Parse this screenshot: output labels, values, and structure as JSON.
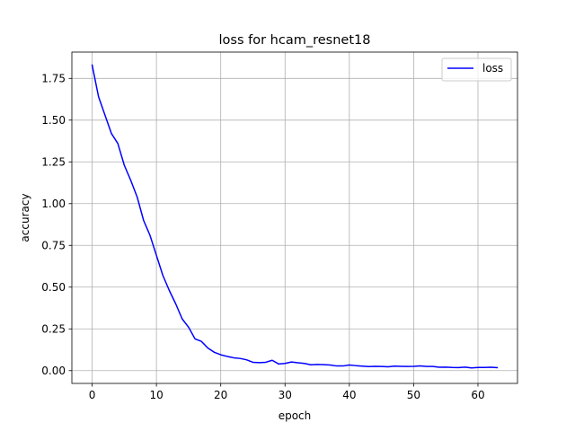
{
  "chart_data": {
    "type": "line",
    "title": "loss for hcam_resnet18",
    "xlabel": "epoch",
    "ylabel": "accuracy",
    "xlim": [
      -3.15,
      66.15
    ],
    "ylim": [
      -0.0765,
      1.9075
    ],
    "xticks": [
      0,
      10,
      20,
      30,
      40,
      50,
      60
    ],
    "yticks": [
      0.0,
      0.25,
      0.5,
      0.75,
      1.0,
      1.25,
      1.5,
      1.75
    ],
    "ytick_labels": [
      "0.00",
      "0.25",
      "0.50",
      "0.75",
      "1.00",
      "1.25",
      "1.50",
      "1.75"
    ],
    "grid": true,
    "legend_position": "top-right",
    "series": [
      {
        "name": "loss",
        "color": "#0000ff",
        "x": [
          0,
          1,
          2,
          3,
          4,
          5,
          6,
          7,
          8,
          9,
          10,
          11,
          12,
          13,
          14,
          15,
          16,
          17,
          18,
          19,
          20,
          21,
          22,
          23,
          24,
          25,
          26,
          27,
          28,
          29,
          30,
          31,
          32,
          33,
          34,
          35,
          36,
          37,
          38,
          39,
          40,
          41,
          42,
          43,
          44,
          45,
          46,
          47,
          48,
          49,
          50,
          51,
          52,
          53,
          54,
          55,
          56,
          57,
          58,
          59,
          60,
          61,
          62,
          63
        ],
        "values": [
          1.83,
          1.64,
          1.53,
          1.42,
          1.36,
          1.23,
          1.14,
          1.04,
          0.9,
          0.81,
          0.69,
          0.57,
          0.48,
          0.4,
          0.31,
          0.26,
          0.19,
          0.175,
          0.135,
          0.11,
          0.095,
          0.085,
          0.077,
          0.073,
          0.065,
          0.05,
          0.048,
          0.05,
          0.062,
          0.04,
          0.043,
          0.052,
          0.047,
          0.043,
          0.035,
          0.037,
          0.036,
          0.034,
          0.028,
          0.028,
          0.034,
          0.03,
          0.027,
          0.024,
          0.026,
          0.025,
          0.023,
          0.027,
          0.026,
          0.025,
          0.026,
          0.028,
          0.025,
          0.025,
          0.02,
          0.021,
          0.019,
          0.018,
          0.021,
          0.016,
          0.019,
          0.019,
          0.02,
          0.018
        ]
      }
    ]
  }
}
